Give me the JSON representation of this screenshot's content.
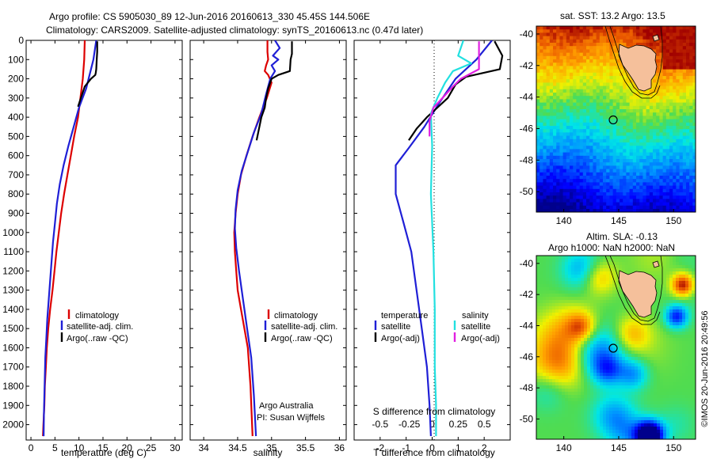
{
  "figure": {
    "title_line1": "Argo profile: CS 5905030_89 12-Jun-2016 20160613_330 45.45S 144.506E",
    "title_line2": "Climatology: CARS2009. Satellite-adjusted climatology: synTS_20160613.nc (0.47d later)",
    "stamp": "©IMOS 20-Jun-2016 20:49:56",
    "credit_line1": "Argo Australia",
    "credit_line2": "PI: Susan Wijffels"
  },
  "colors": {
    "climatology": "#dd0000",
    "satellite": "#1f1fd6",
    "argo": "#000000",
    "salinity_satellite": "#22e0e0",
    "salinity_argo": "#e020e0",
    "land": "#f5c09b",
    "marker": "#000000"
  },
  "chart_data": [
    {
      "type": "line",
      "name": "temperature-profile",
      "xlabel": "temperature (deg C)",
      "ylabel": "",
      "xlim": [
        -1,
        31.5
      ],
      "ylim": [
        2080,
        0
      ],
      "xticks": [
        0,
        5,
        10,
        15,
        20,
        25,
        30
      ],
      "yticks": [
        0,
        100,
        200,
        300,
        400,
        500,
        600,
        700,
        800,
        900,
        1000,
        1100,
        1200,
        1300,
        1400,
        1500,
        1600,
        1700,
        1800,
        1900,
        2000
      ],
      "legend_placement": "lower-center",
      "legend": [
        "climatology",
        "satellite-adj. clim.",
        "Argo(..raw -QC)"
      ],
      "series": [
        {
          "name": "climatology",
          "color_key": "climatology",
          "x": [
            11.2,
            11.1,
            10.8,
            10.3,
            9.8,
            9.0,
            8.3,
            7.6,
            6.9,
            6.3,
            5.8,
            5.3,
            4.9,
            4.5,
            4.0,
            3.6,
            3.3,
            3.1,
            2.9,
            2.8,
            2.7,
            2.6,
            2.55,
            2.5
          ],
          "y": [
            0,
            100,
            200,
            300,
            400,
            500,
            600,
            700,
            800,
            900,
            1000,
            1100,
            1200,
            1300,
            1400,
            1500,
            1600,
            1700,
            1800,
            1900,
            1950,
            2000,
            2030,
            2060
          ]
        },
        {
          "name": "satellite-adj. clim.",
          "color_key": "satellite",
          "x": [
            13.6,
            13.3,
            13.0,
            11.5,
            10.0,
            8.9,
            7.8,
            6.8,
            6.0,
            5.4,
            5.0,
            4.6,
            4.3,
            4.0,
            3.7,
            3.4,
            3.2,
            3.0,
            2.9,
            2.8,
            2.7,
            2.65
          ],
          "y": [
            0,
            50,
            100,
            250,
            350,
            450,
            550,
            650,
            750,
            850,
            950,
            1050,
            1150,
            1250,
            1350,
            1450,
            1550,
            1650,
            1750,
            1850,
            1950,
            2060
          ]
        },
        {
          "name": "Argo(..raw -QC)",
          "color_key": "argo",
          "x": [
            13.8,
            13.8,
            13.7,
            13.6,
            13.5,
            13.4,
            12.5,
            11.2,
            10.4,
            9.8
          ],
          "y": [
            5,
            60,
            100,
            150,
            168,
            180,
            200,
            240,
            300,
            345
          ]
        }
      ]
    },
    {
      "type": "line",
      "name": "salinity-profile",
      "xlabel": "salinity",
      "ylabel": "",
      "xlim": [
        33.8,
        36.1
      ],
      "ylim": [
        2080,
        0
      ],
      "xticks": [
        34,
        34.5,
        35,
        35.5,
        36
      ],
      "legend_placement": "lower-right",
      "legend": [
        "climatology",
        "satellite-adj. clim.",
        "Argo(..raw -QC)"
      ],
      "series": [
        {
          "name": "climatology",
          "color_key": "climatology",
          "x": [
            34.94,
            34.94,
            34.95,
            34.92,
            34.9,
            34.95,
            35.0,
            34.93,
            34.82,
            34.72,
            34.63,
            34.55,
            34.5,
            34.47,
            34.45,
            34.46,
            34.48,
            34.5,
            34.55,
            34.6,
            34.65,
            34.69,
            34.72
          ],
          "y": [
            0,
            60,
            100,
            130,
            160,
            180,
            220,
            300,
            400,
            500,
            600,
            700,
            800,
            900,
            1000,
            1100,
            1200,
            1300,
            1400,
            1500,
            1600,
            1800,
            2060
          ]
        },
        {
          "name": "satellite-adj. clim.",
          "color_key": "satellite",
          "x": [
            35.05,
            35.12,
            35.02,
            35.1,
            35.0,
            35.05,
            34.98,
            34.92,
            34.85,
            34.74,
            34.65,
            34.56,
            34.5,
            34.47,
            34.46,
            34.48,
            34.52,
            34.58,
            34.64,
            34.7,
            34.74,
            34.77
          ],
          "y": [
            0,
            40,
            80,
            100,
            130,
            160,
            200,
            280,
            380,
            480,
            580,
            680,
            780,
            880,
            980,
            1080,
            1200,
            1350,
            1500,
            1650,
            1850,
            2060
          ]
        },
        {
          "name": "Argo(..raw -QC)",
          "color_key": "argo",
          "x": [
            35.3,
            35.3,
            35.28,
            35.27,
            35.1,
            35.0,
            34.95,
            34.92,
            34.9,
            34.85,
            34.82,
            34.78
          ],
          "y": [
            5,
            70,
            100,
            160,
            180,
            200,
            250,
            300,
            350,
            400,
            450,
            520
          ]
        }
      ]
    },
    {
      "type": "line",
      "name": "difference-profile",
      "xlabel": "T difference from climatology",
      "xlabel_top": "S difference from climatology",
      "ylabel": "",
      "xlim": [
        -3,
        3
      ],
      "ylim": [
        2080,
        0
      ],
      "xticks": [
        -2,
        -1,
        0,
        1,
        2
      ],
      "xticks_top_labels": [
        "-0.5",
        "-0.25",
        "0",
        "0.25",
        "0.5"
      ],
      "legend_placement": "lower-center",
      "legend_temperature": [
        "temperature",
        "satellite",
        "Argo(-adj)"
      ],
      "legend_salinity": [
        "salinity",
        "satellite",
        "Argo(-adj)"
      ],
      "series": [
        {
          "name": "satellite",
          "group": "temperature",
          "color_key": "satellite",
          "x": [
            2.3,
            1.7,
            0.9,
            0.3,
            -0.3,
            -0.9,
            -1.4,
            -1.4,
            -1.1,
            -0.8,
            -0.6,
            -0.4,
            -0.2,
            -0.1,
            -0.05
          ],
          "y": [
            0,
            100,
            200,
            320,
            450,
            560,
            650,
            800,
            950,
            1100,
            1300,
            1500,
            1700,
            1900,
            2060
          ]
        },
        {
          "name": "Argo(-adj)",
          "group": "temperature",
          "color_key": "argo",
          "x": [
            2.4,
            2.7,
            2.6,
            1.3,
            0.9,
            0.6,
            0.2,
            -0.2,
            -0.6,
            -0.9
          ],
          "y": [
            5,
            80,
            150,
            190,
            230,
            300,
            350,
            400,
            460,
            520
          ]
        },
        {
          "name": "satellite",
          "group": "salinity",
          "color_key": "salinity_satellite",
          "x": [
            1.2,
            1.0,
            1.5,
            0.8,
            0.5,
            0.2,
            -0.05,
            0.0,
            -0.05,
            0.05,
            0.1,
            0.1,
            0.15,
            0.15
          ],
          "y": [
            0,
            80,
            120,
            160,
            220,
            300,
            380,
            550,
            800,
            1100,
            1400,
            1700,
            1900,
            2060
          ]
        },
        {
          "name": "Argo(-adj)",
          "group": "salinity",
          "color_key": "salinity_argo",
          "x": [
            1.8,
            1.8,
            1.1,
            0.8,
            0.4,
            0.05,
            -0.1,
            -0.1
          ],
          "y": [
            5,
            150,
            200,
            240,
            300,
            350,
            420,
            500
          ]
        }
      ]
    },
    {
      "type": "heatmap",
      "name": "sst-map",
      "title": "sat. SST: 13.2  Argo: 13.5",
      "xlim": [
        137.5,
        152
      ],
      "ylim": [
        -51.3,
        -39.5
      ],
      "xticks": [
        140,
        145,
        150
      ],
      "yticks": [
        -40,
        -42,
        -44,
        -46,
        -48,
        -50
      ],
      "marker": {
        "lon": 144.5,
        "lat": -45.45
      }
    },
    {
      "type": "heatmap",
      "name": "sla-map",
      "title_line1": "Altim. SLA: -0.13",
      "title_line2": "Argo h1000: NaN  h2000: NaN",
      "xlim": [
        137.5,
        152
      ],
      "ylim": [
        -51.3,
        -39.5
      ],
      "xticks": [
        140,
        145,
        150
      ],
      "yticks": [
        -40,
        -42,
        -44,
        -46,
        -48,
        -50
      ],
      "marker": {
        "lon": 144.5,
        "lat": -45.45
      }
    }
  ]
}
